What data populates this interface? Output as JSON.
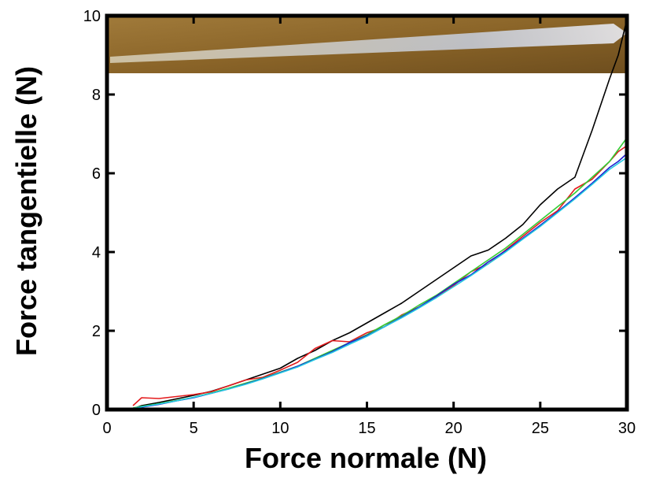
{
  "chart_data": {
    "type": "line",
    "x_label": "Force normale (N)",
    "y_label": "Force tangentielle (N)",
    "x": [
      1.5,
      2,
      3,
      4,
      5,
      6,
      7,
      8,
      9,
      10,
      11,
      12,
      13,
      14,
      15,
      16,
      17,
      18,
      19,
      20,
      21,
      22,
      23,
      24,
      25,
      26,
      27,
      28,
      29,
      29.5,
      30
    ],
    "series": [
      {
        "color": "#000000",
        "values": [
          0.02,
          0.1,
          0.18,
          0.27,
          0.36,
          0.46,
          0.6,
          0.75,
          0.9,
          1.05,
          1.3,
          1.5,
          1.75,
          1.95,
          2.2,
          2.45,
          2.7,
          3.0,
          3.3,
          3.6,
          3.9,
          4.05,
          4.35,
          4.7,
          5.2,
          5.6,
          5.9,
          7.1,
          8.4,
          9.0,
          9.9
        ]
      },
      {
        "color": "#e41a1c",
        "values": [
          0.1,
          0.3,
          0.28,
          0.33,
          0.38,
          0.45,
          0.6,
          0.75,
          0.82,
          1.0,
          1.2,
          1.55,
          1.75,
          1.72,
          1.95,
          2.1,
          2.4,
          2.6,
          2.85,
          3.15,
          3.5,
          3.7,
          4.05,
          4.4,
          4.75,
          5.05,
          5.6,
          5.85,
          6.3,
          6.55,
          6.7
        ]
      },
      {
        "color": "#33cc33",
        "values": [
          0.04,
          0.08,
          0.15,
          0.23,
          0.31,
          0.42,
          0.54,
          0.67,
          0.8,
          0.95,
          1.1,
          1.3,
          1.5,
          1.7,
          1.9,
          2.15,
          2.38,
          2.65,
          2.9,
          3.2,
          3.5,
          3.8,
          4.1,
          4.45,
          4.8,
          5.15,
          5.5,
          5.9,
          6.3,
          6.6,
          6.9
        ]
      },
      {
        "color": "#1f1fd0",
        "values": [
          0.02,
          0.06,
          0.13,
          0.22,
          0.3,
          0.41,
          0.52,
          0.65,
          0.79,
          0.94,
          1.1,
          1.28,
          1.47,
          1.7,
          1.88,
          2.1,
          2.35,
          2.6,
          2.88,
          3.18,
          3.42,
          3.75,
          4.03,
          4.35,
          4.68,
          5.02,
          5.38,
          5.75,
          6.15,
          6.3,
          6.5
        ]
      },
      {
        "color": "#22c8e0",
        "values": [
          0.03,
          0.07,
          0.14,
          0.22,
          0.31,
          0.41,
          0.52,
          0.64,
          0.78,
          0.93,
          1.08,
          1.27,
          1.45,
          1.66,
          1.86,
          2.1,
          2.33,
          2.58,
          2.84,
          3.12,
          3.4,
          3.7,
          4.0,
          4.33,
          4.65,
          5.0,
          5.35,
          5.72,
          6.1,
          6.25,
          6.4
        ]
      }
    ],
    "xlim": [
      0,
      30
    ],
    "xticks": [
      0,
      5,
      10,
      15,
      20,
      25,
      30
    ],
    "ylim": [
      0,
      10
    ],
    "yticks": [
      0,
      2,
      4,
      6,
      8,
      10
    ]
  }
}
